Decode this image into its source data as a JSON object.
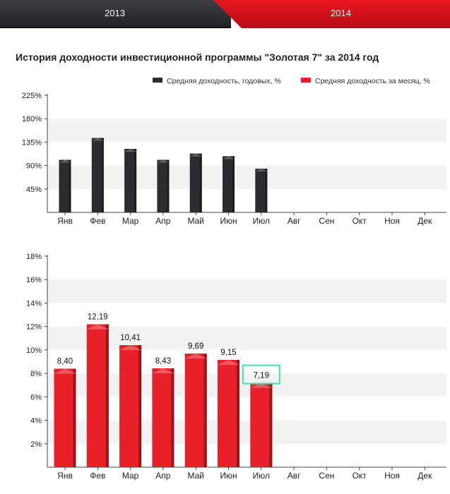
{
  "tabs": {
    "year_2013": "2013",
    "year_2014": "2014",
    "active": "2014"
  },
  "page": {
    "title": "История доходности инвестиционной программы \"Золотая 7\" за 2014 год"
  },
  "legend": {
    "annual": {
      "label": "Средняя доходность, годовых, %",
      "color": "#2b2b30"
    },
    "monthly": {
      "label": "Средняя доходность за месяц, %",
      "color": "#e8202a"
    }
  },
  "colors": {
    "accent": "#e8161f",
    "highlight": "#3de0b0",
    "grid_band": "#f2f2f2"
  },
  "chart_data": [
    {
      "type": "bar",
      "title": "",
      "series": [
        {
          "name": "Средняя доходность, годовых, %",
          "values": [
            101,
            143,
            122,
            101,
            113,
            108,
            84,
            null,
            null,
            null,
            null,
            null
          ]
        }
      ],
      "categories": [
        "Янв",
        "Фев",
        "Мар",
        "Апр",
        "Май",
        "Июн",
        "Июл",
        "Авг",
        "Сен",
        "Окт",
        "Ноя",
        "Дек"
      ],
      "y_ticks": [
        45,
        90,
        135,
        180,
        225
      ],
      "y_tick_labels": [
        "45%",
        "90%",
        "135%",
        "180%",
        "225%"
      ],
      "ylim": [
        0,
        225
      ],
      "xlabel": "",
      "ylabel": "",
      "grid": true
    },
    {
      "type": "bar",
      "title": "",
      "series": [
        {
          "name": "Средняя доходность за месяц, %",
          "values": [
            8.4,
            12.19,
            10.41,
            8.43,
            9.69,
            9.15,
            7.19,
            null,
            null,
            null,
            null,
            null
          ]
        }
      ],
      "data_labels": [
        "8,40",
        "12,19",
        "10,41",
        "8,43",
        "9,69",
        "9,15",
        "7,19"
      ],
      "highlighted_label": "7,19",
      "categories": [
        "Янв",
        "Фев",
        "Мар",
        "Апр",
        "Май",
        "Июн",
        "Июл",
        "Авг",
        "Сен",
        "Окт",
        "Ноя",
        "Дек"
      ],
      "y_ticks": [
        2,
        4,
        6,
        8,
        10,
        12,
        14,
        16,
        18
      ],
      "y_tick_labels": [
        "2%",
        "4%",
        "6%",
        "8%",
        "10%",
        "12%",
        "14%",
        "16%",
        "18%"
      ],
      "ylim": [
        0,
        18
      ],
      "xlabel": "",
      "ylabel": "",
      "grid": true
    }
  ]
}
